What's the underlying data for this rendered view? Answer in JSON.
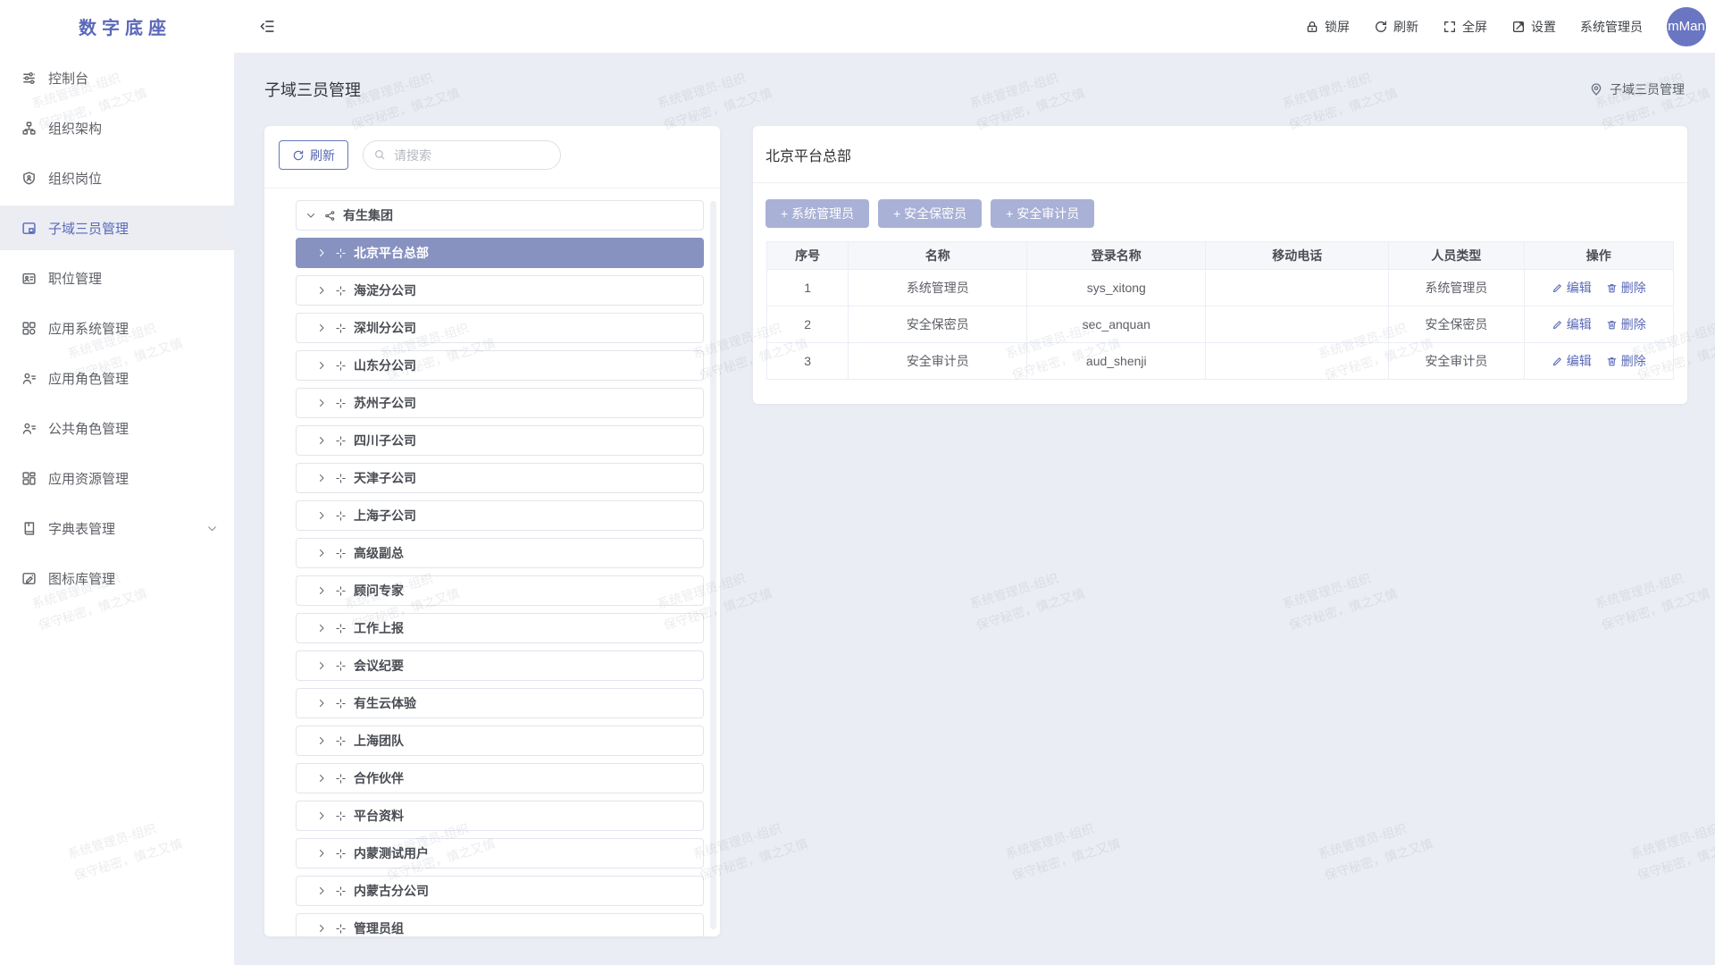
{
  "app": {
    "logo": "数字底座"
  },
  "header": {
    "actions": [
      {
        "label": "锁屏",
        "icon": "lock"
      },
      {
        "label": "刷新",
        "icon": "refresh"
      },
      {
        "label": "全屏",
        "icon": "fullscreen"
      },
      {
        "label": "设置",
        "icon": "edit-square"
      }
    ],
    "username": "系统管理员",
    "avatar_text": "mMan"
  },
  "sidebar": {
    "items": [
      {
        "label": "控制台",
        "icon": "console",
        "active": false,
        "expandable": false
      },
      {
        "label": "组织架构",
        "icon": "org-tree",
        "active": false,
        "expandable": false
      },
      {
        "label": "组织岗位",
        "icon": "org-post",
        "active": false,
        "expandable": false
      },
      {
        "label": "子域三员管理",
        "icon": "subdomain",
        "active": true,
        "expandable": false
      },
      {
        "label": "职位管理",
        "icon": "position",
        "active": false,
        "expandable": false
      },
      {
        "label": "应用系统管理",
        "icon": "app-system",
        "active": false,
        "expandable": false
      },
      {
        "label": "应用角色管理",
        "icon": "app-role",
        "active": false,
        "expandable": false
      },
      {
        "label": "公共角色管理",
        "icon": "public-role",
        "active": false,
        "expandable": false
      },
      {
        "label": "应用资源管理",
        "icon": "app-resource",
        "active": false,
        "expandable": false
      },
      {
        "label": "字典表管理",
        "icon": "dictionary",
        "active": false,
        "expandable": true
      },
      {
        "label": "图标库管理",
        "icon": "icon-lib",
        "active": false,
        "expandable": false
      }
    ]
  },
  "page": {
    "title": "子域三员管理",
    "breadcrumb": "子域三员管理"
  },
  "left_panel": {
    "refresh_label": "刷新",
    "search_placeholder": "请搜索",
    "tree": {
      "root": "有生集团",
      "selected": "北京平台总部",
      "children": [
        "北京平台总部",
        "海淀分公司",
        "深圳分公司",
        "山东分公司",
        "苏州子公司",
        "四川子公司",
        "天津子公司",
        "上海子公司",
        "高级副总",
        "顾问专家",
        "工作上报",
        "会议纪要",
        "有生云体验",
        "上海团队",
        "合作伙伴",
        "平台资料",
        "内蒙测试用户",
        "内蒙古分公司",
        "管理员组"
      ]
    }
  },
  "right_panel": {
    "title": "北京平台总部",
    "add_buttons": [
      "+ 系统管理员",
      "+ 安全保密员",
      "+ 安全审计员"
    ],
    "table": {
      "headers": [
        "序号",
        "名称",
        "登录名称",
        "移动电话",
        "人员类型",
        "操作"
      ],
      "rows": [
        {
          "seq": "1",
          "name": "系统管理员",
          "login": "sys_xitong",
          "phone": "",
          "type": "系统管理员"
        },
        {
          "seq": "2",
          "name": "安全保密员",
          "login": "sec_anquan",
          "phone": "",
          "type": "安全保密员"
        },
        {
          "seq": "3",
          "name": "安全审计员",
          "login": "aud_shenji",
          "phone": "",
          "type": "安全审计员"
        }
      ],
      "actions": {
        "edit": "编辑",
        "delete": "删除"
      }
    }
  },
  "watermark": {
    "line1": "系统管理员-组织",
    "line2": "保守秘密，慎之又慎"
  },
  "colors": {
    "primary": "#5a68b8",
    "selected_bg": "#8892c0",
    "button_bg": "#a9b1d6",
    "content_bg": "#ebedf4",
    "avatar_bg": "#6a76c2"
  }
}
